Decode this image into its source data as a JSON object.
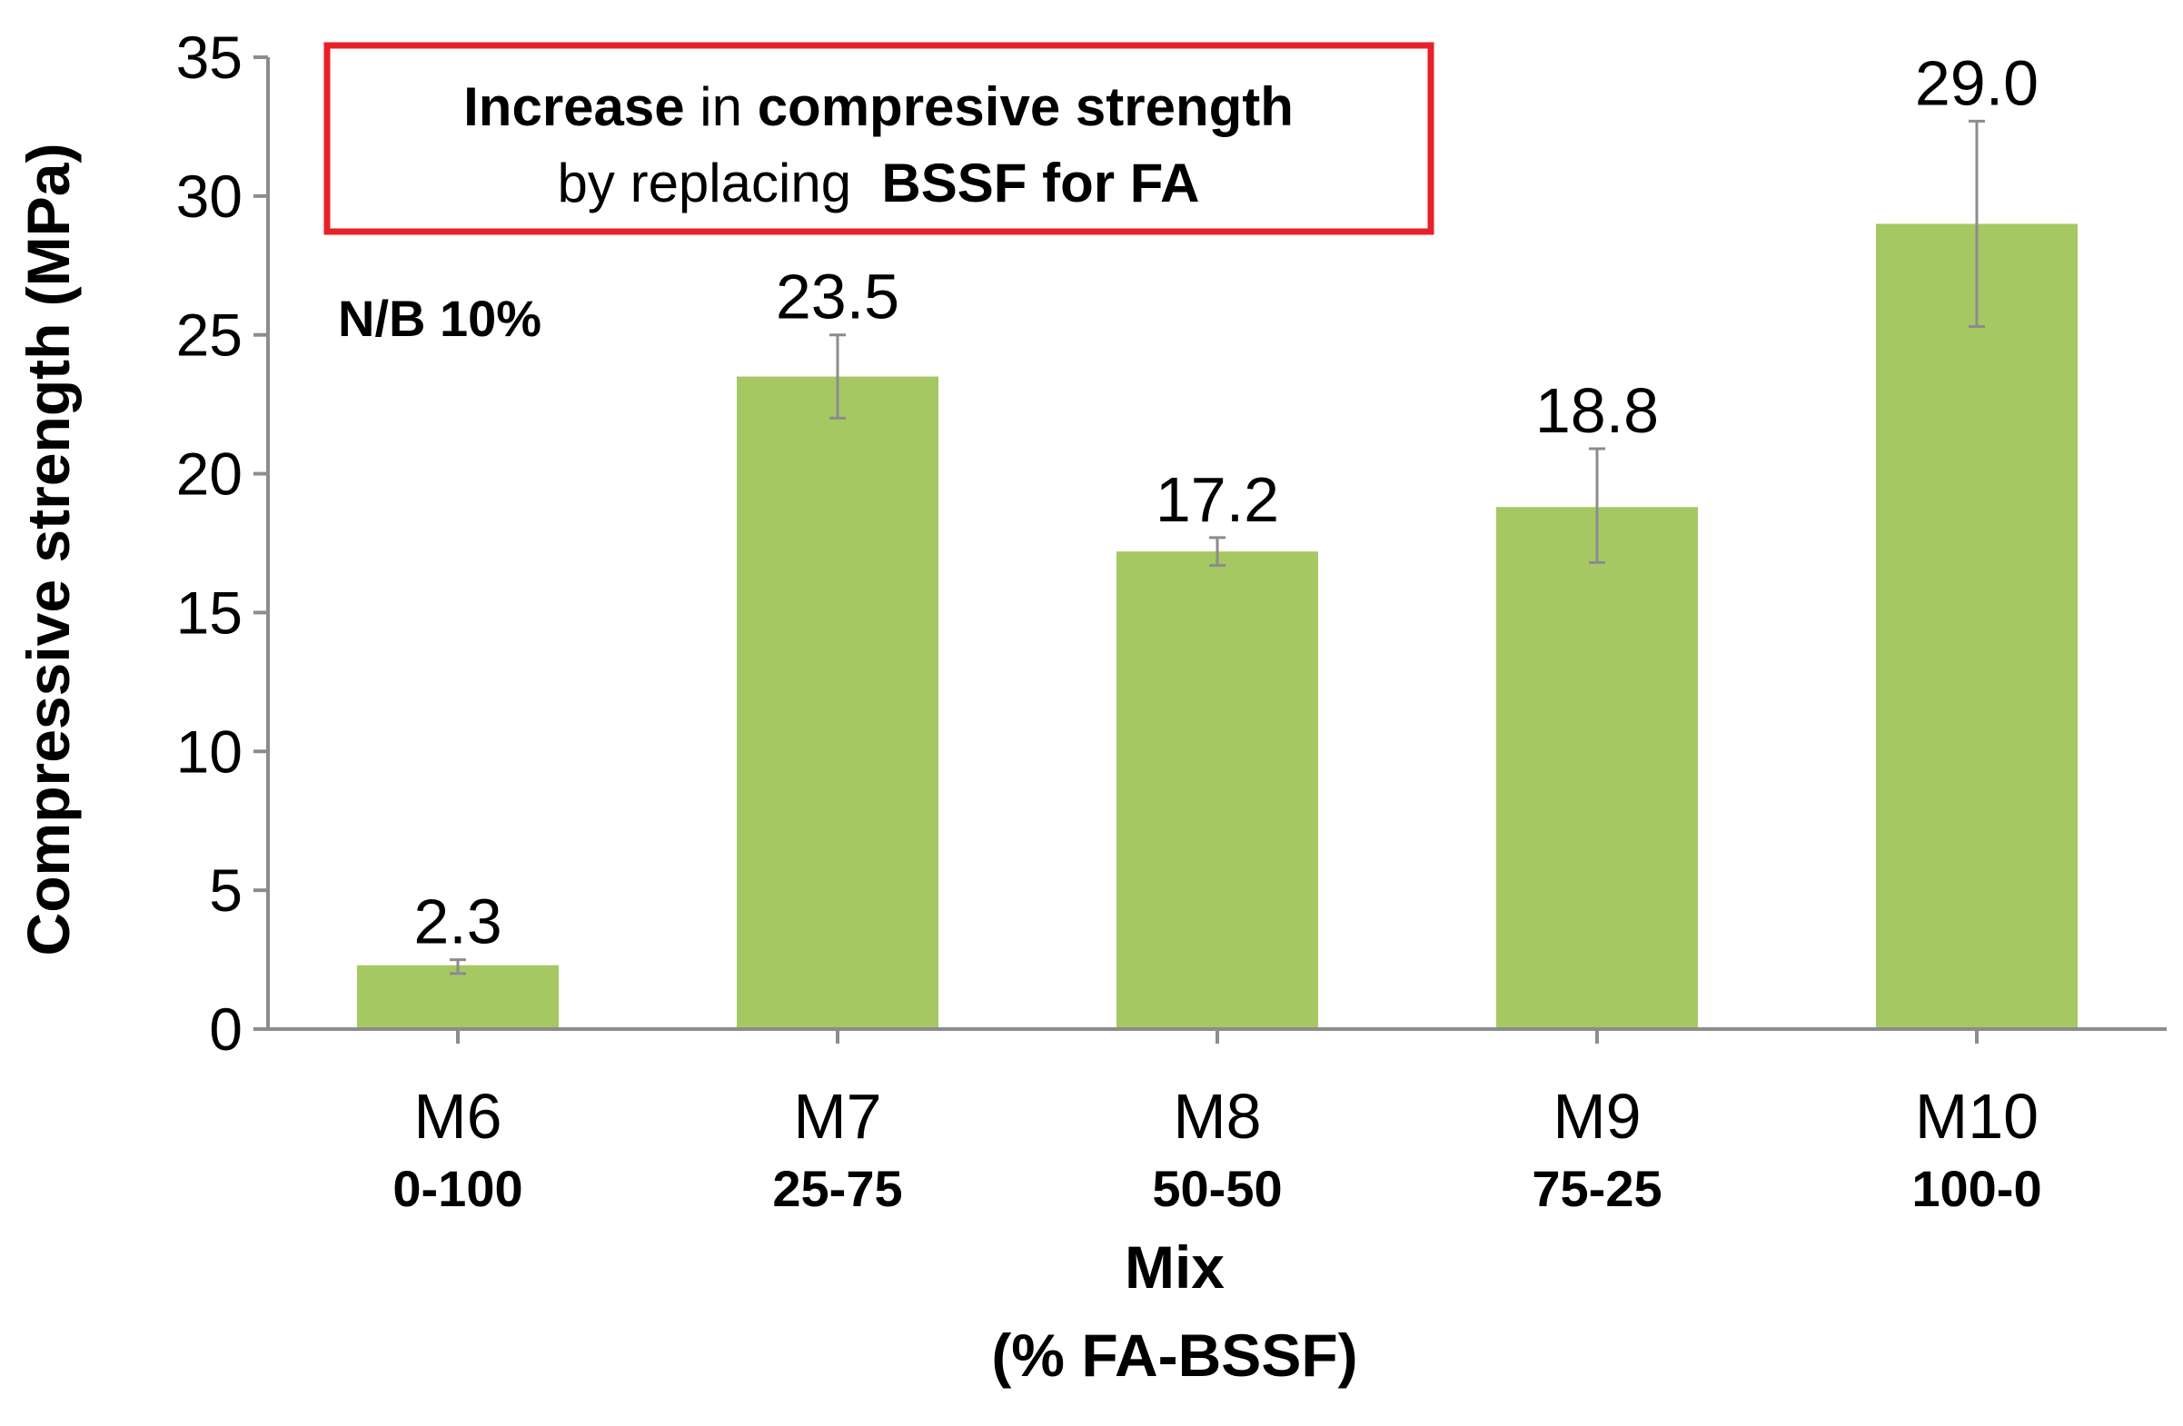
{
  "chart_data": {
    "type": "bar",
    "categories": [
      "M6",
      "M7",
      "M8",
      "M9",
      "M10"
    ],
    "category_sublabels": [
      "0-100",
      "25-75",
      "50-50",
      "75-25",
      "100-0"
    ],
    "values": [
      2.3,
      23.5,
      17.2,
      18.8,
      29.0
    ],
    "value_labels": [
      "2.3",
      "23.5",
      "17.2",
      "18.8",
      "29.0"
    ],
    "error_bars": [
      {
        "low": 2.0,
        "high": 2.5
      },
      {
        "low": 22.0,
        "high": 25.0
      },
      {
        "low": 16.7,
        "high": 17.7
      },
      {
        "low": 16.8,
        "high": 20.9
      },
      {
        "low": 25.3,
        "high": 32.7
      }
    ],
    "ylabel": "Compressive strength (MPa)",
    "xlabel_line1": "Mix",
    "xlabel_line2": "(% FA-BSSF)",
    "ylim": [
      0,
      35
    ],
    "yticks": [
      0,
      5,
      10,
      15,
      20,
      25,
      30,
      35
    ],
    "ytick_labels": [
      "0",
      "5",
      "10",
      "15",
      "20",
      "25",
      "30",
      "35"
    ],
    "grid": false,
    "legend": "none",
    "bar_color": "#a5c863",
    "error_color": "#8c8c8c",
    "annotation": {
      "line1": [
        {
          "text": "Increase",
          "bold": true
        },
        {
          "text": " in ",
          "bold": false
        },
        {
          "text": "compresive strength",
          "bold": true
        }
      ],
      "line2": [
        {
          "text": "by replacing  ",
          "bold": false
        },
        {
          "text": "BSSF for FA",
          "bold": true
        }
      ],
      "border_color": "#e8202a"
    },
    "note": "N/B 10%"
  }
}
